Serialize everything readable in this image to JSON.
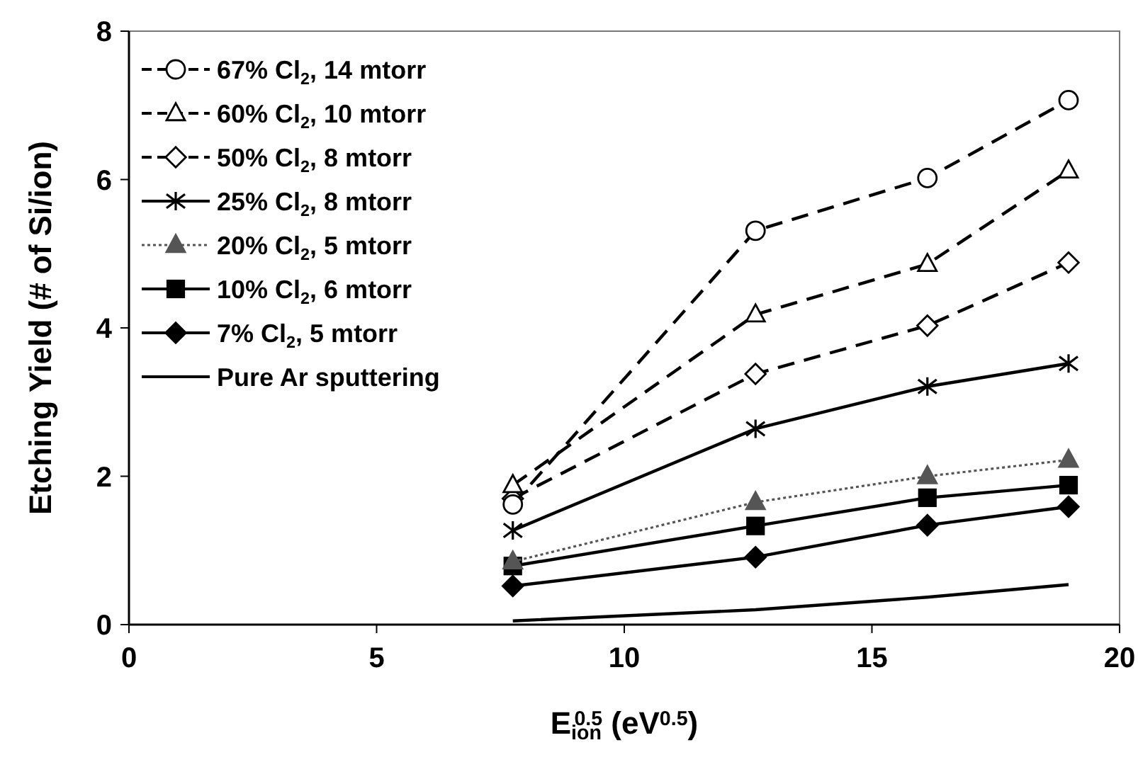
{
  "chart_data": {
    "type": "line",
    "xlabel": "E$_{ion}$$^{0.5}$ (eV$^{0.5}$)",
    "ylabel": "Etching Yield (# of Si/ion)",
    "x": [
      7.75,
      12.65,
      16.12,
      18.97
    ],
    "xlim": [
      0,
      20
    ],
    "xticks": [
      0,
      5,
      10,
      15,
      20
    ],
    "ylim": [
      0,
      8
    ],
    "yticks": [
      0,
      2,
      4,
      6,
      8
    ],
    "grid": false,
    "legend": "top left",
    "series": [
      {
        "name": "67% Cl$_{2}$, 14 mtorr",
        "color": "#000000",
        "marker": "circle",
        "line_style": "dashed",
        "values": [
          1.62,
          5.31,
          6.02,
          7.07
        ]
      },
      {
        "name": "60% Cl$_{2}$, 10 mtorr",
        "color": "#000000",
        "marker": "triangle",
        "line_style": "dashed",
        "values": [
          1.88,
          4.18,
          4.86,
          6.12
        ]
      },
      {
        "name": "50% Cl$_{2}$, 8 mtorr",
        "color": "#000000",
        "marker": "diamond",
        "line_style": "dashed",
        "values": [
          1.7,
          3.38,
          4.03,
          4.88
        ]
      },
      {
        "name": "25% Cl$_{2}$, 8 mtorr",
        "color": "#000000",
        "marker": "cross",
        "line_style": "solid",
        "values": [
          1.27,
          2.64,
          3.21,
          3.52
        ]
      },
      {
        "name": "20% Cl$_{2}$, 5 mtorr",
        "color": "#555555",
        "marker": "triangle",
        "line_style": "dotted",
        "values": [
          0.85,
          1.65,
          2.0,
          2.22
        ]
      },
      {
        "name": "10% Cl$_{2}$, 6 mtorr",
        "color": "#000000",
        "marker": "square",
        "line_style": "solid",
        "values": [
          0.79,
          1.33,
          1.71,
          1.88
        ]
      },
      {
        "name": "7% Cl$_{2}$, 5 mtorr",
        "color": "#000000",
        "marker": "diamond",
        "line_style": "solid",
        "values": [
          0.52,
          0.91,
          1.34,
          1.59
        ]
      },
      {
        "name": "Pure Ar sputtering",
        "color": "#000000",
        "marker": "none",
        "line_style": "solid",
        "values": [
          0.05,
          0.2,
          0.37,
          0.54
        ]
      }
    ]
  }
}
